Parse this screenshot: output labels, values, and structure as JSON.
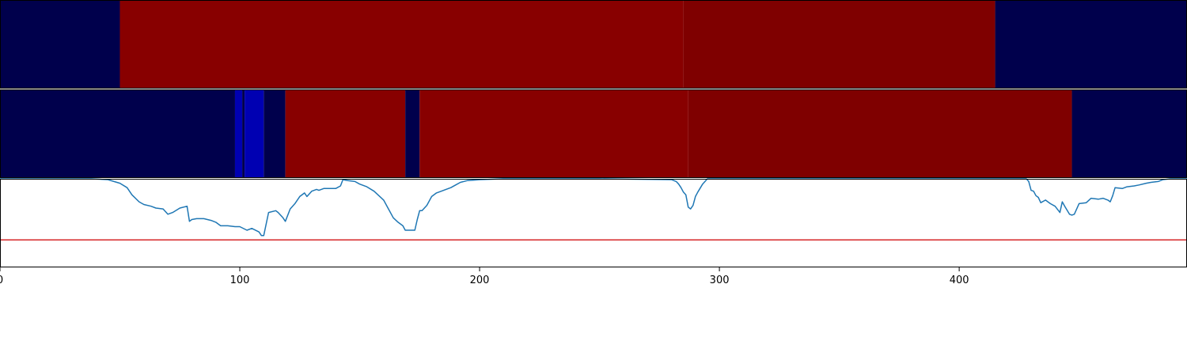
{
  "chart_data": {
    "type": "heatmap",
    "title": "",
    "xlabel": "",
    "ylabel": "",
    "xlim": [
      0,
      495
    ],
    "grid": false,
    "x_ticks": [
      {
        "value": 0,
        "label": "0"
      },
      {
        "value": 100,
        "label": "100"
      },
      {
        "value": 200,
        "label": "200"
      },
      {
        "value": 300,
        "label": "300"
      },
      {
        "value": 400,
        "label": "400"
      }
    ],
    "colors": {
      "state_dark_blue": "#00004c",
      "state_blue": "#0000b2",
      "state_red": "#880000",
      "state_dark_red": "#7f0000",
      "line": "#1f77b4",
      "threshold": "#d62728"
    },
    "bands": [
      {
        "segments": [
          {
            "start": 0,
            "end": 50,
            "color": "#00004c"
          },
          {
            "start": 50,
            "end": 285,
            "color": "#880000"
          },
          {
            "start": 285,
            "end": 415,
            "color": "#7f0000"
          },
          {
            "start": 415,
            "end": 495,
            "color": "#00004c"
          }
        ]
      },
      {
        "segments": [
          {
            "start": 0,
            "end": 98,
            "color": "#00004c"
          },
          {
            "start": 98,
            "end": 101,
            "color": "#0000b2"
          },
          {
            "start": 101,
            "end": 102,
            "color": "#00004c"
          },
          {
            "start": 102,
            "end": 110,
            "color": "#0000b2"
          },
          {
            "start": 110,
            "end": 119,
            "color": "#00004c"
          },
          {
            "start": 119,
            "end": 169,
            "color": "#880000"
          },
          {
            "start": 169,
            "end": 175,
            "color": "#00004c"
          },
          {
            "start": 175,
            "end": 287,
            "color": "#880000"
          },
          {
            "start": 287,
            "end": 447,
            "color": "#7f0000"
          },
          {
            "start": 447,
            "end": 495,
            "color": "#00004c"
          }
        ]
      }
    ],
    "line_panel": {
      "ylim": [
        0,
        1
      ],
      "threshold": 0.31,
      "series": [
        {
          "x": [
            0,
            38,
            45,
            50,
            53,
            55,
            58,
            60,
            63,
            65,
            68,
            70,
            72,
            75,
            78,
            79,
            80,
            82,
            85,
            88,
            90,
            92,
            95,
            98,
            100,
            103,
            105,
            108,
            109,
            110,
            112,
            115,
            116,
            118,
            119,
            121,
            123,
            125,
            127,
            128,
            130,
            132,
            133,
            135,
            138,
            140,
            142,
            143,
            145,
            148,
            150,
            153,
            156,
            160,
            162,
            164,
            166,
            168,
            169,
            171,
            173,
            174,
            175,
            176,
            178,
            180,
            182,
            184,
            186,
            188,
            190,
            192,
            195,
            200,
            210,
            250,
            280,
            282,
            283,
            284,
            285,
            286,
            287,
            288,
            289,
            290,
            291,
            293,
            295,
            400,
            428,
            429,
            430,
            431,
            432,
            433,
            434,
            436,
            438,
            440,
            442,
            443,
            444,
            446,
            447,
            448,
            450,
            453,
            455,
            458,
            460,
            462,
            463,
            464,
            465,
            468,
            470,
            473,
            475,
            478,
            480,
            483,
            485,
            488,
            492,
            495
          ],
          "y": [
            1.0,
            1.0,
            0.99,
            0.95,
            0.9,
            0.82,
            0.74,
            0.71,
            0.69,
            0.67,
            0.66,
            0.6,
            0.62,
            0.67,
            0.69,
            0.52,
            0.54,
            0.55,
            0.55,
            0.53,
            0.51,
            0.47,
            0.47,
            0.46,
            0.46,
            0.42,
            0.44,
            0.4,
            0.36,
            0.36,
            0.62,
            0.64,
            0.62,
            0.56,
            0.52,
            0.66,
            0.72,
            0.8,
            0.84,
            0.8,
            0.86,
            0.88,
            0.87,
            0.89,
            0.89,
            0.89,
            0.92,
            0.99,
            0.98,
            0.97,
            0.94,
            0.91,
            0.86,
            0.76,
            0.66,
            0.56,
            0.51,
            0.47,
            0.42,
            0.42,
            0.42,
            0.54,
            0.64,
            0.64,
            0.7,
            0.8,
            0.84,
            0.86,
            0.88,
            0.9,
            0.93,
            0.96,
            0.98,
            0.99,
            1.0,
            1.0,
            0.99,
            0.97,
            0.94,
            0.9,
            0.85,
            0.82,
            0.68,
            0.66,
            0.7,
            0.8,
            0.85,
            0.94,
            1.0,
            1.0,
            1.0,
            0.97,
            0.87,
            0.86,
            0.81,
            0.79,
            0.73,
            0.76,
            0.72,
            0.69,
            0.62,
            0.74,
            0.69,
            0.6,
            0.59,
            0.6,
            0.72,
            0.73,
            0.78,
            0.77,
            0.78,
            0.76,
            0.74,
            0.81,
            0.9,
            0.89,
            0.91,
            0.92,
            0.93,
            0.95,
            0.96,
            0.97,
            0.99,
            1.0,
            1.0,
            1.0
          ]
        }
      ]
    }
  }
}
